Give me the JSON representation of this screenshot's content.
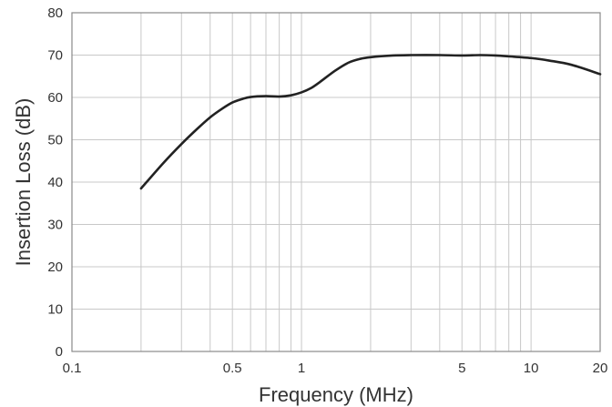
{
  "chart_data": {
    "type": "line",
    "title": "",
    "xlabel": "Frequency (MHz)",
    "ylabel": "Insertion Loss (dB)",
    "xscale": "log",
    "xlim": [
      0.1,
      20
    ],
    "ylim": [
      0,
      80
    ],
    "x_tick_labels": [
      {
        "value": 0.1,
        "label": "0.1"
      },
      {
        "value": 0.5,
        "label": "0.5"
      },
      {
        "value": 1,
        "label": "1"
      },
      {
        "value": 5,
        "label": "5"
      },
      {
        "value": 10,
        "label": "10"
      },
      {
        "value": 20,
        "label": "20"
      }
    ],
    "y_tick_labels": [
      {
        "value": 0,
        "label": "0"
      },
      {
        "value": 10,
        "label": "10"
      },
      {
        "value": 20,
        "label": "20"
      },
      {
        "value": 30,
        "label": "30"
      },
      {
        "value": 40,
        "label": "40"
      },
      {
        "value": 50,
        "label": "50"
      },
      {
        "value": 60,
        "label": "60"
      },
      {
        "value": 70,
        "label": "70"
      },
      {
        "value": 80,
        "label": "80"
      }
    ],
    "grid": {
      "vertical": true,
      "horizontal": true
    },
    "series": [
      {
        "x": [
          0.2,
          0.25,
          0.3,
          0.35,
          0.4,
          0.45,
          0.5,
          0.55,
          0.6,
          0.7,
          0.8,
          0.9,
          1.0,
          1.1,
          1.2,
          1.4,
          1.6,
          1.8,
          2.0,
          2.5,
          3.0,
          4.0,
          5.0,
          6.0,
          7.0,
          8.0,
          10.0,
          12.0,
          15.0,
          20.0
        ],
        "y": [
          38.5,
          44.5,
          49.0,
          52.5,
          55.3,
          57.3,
          58.8,
          59.6,
          60.1,
          60.3,
          60.2,
          60.5,
          61.2,
          62.2,
          63.6,
          66.3,
          68.2,
          69.1,
          69.5,
          69.9,
          70.0,
          70.0,
          69.9,
          70.0,
          69.9,
          69.7,
          69.3,
          68.7,
          67.7,
          65.5
        ]
      }
    ],
    "colors": {
      "line": "#222222",
      "grid": "#c8c8c8",
      "axis": "#8a8a8a"
    }
  }
}
